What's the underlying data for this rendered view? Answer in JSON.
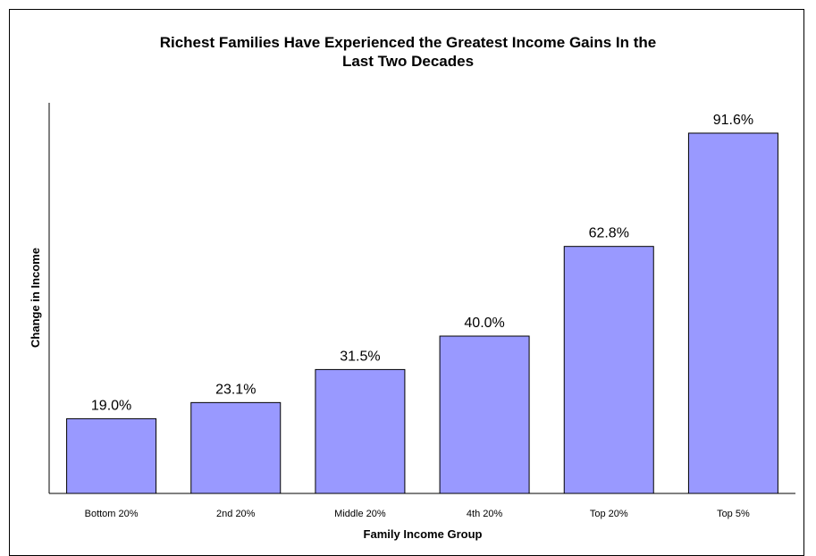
{
  "chart_data": {
    "type": "bar",
    "title_lines": [
      "Richest Families Have Experienced the Greatest Income Gains In the",
      "Last Two Decades"
    ],
    "xlabel": "Family Income Group",
    "ylabel": "Change in Income",
    "categories": [
      "Bottom 20%",
      "2nd 20%",
      "Middle 20%",
      "4th 20%",
      "Top 20%",
      "Top 5%"
    ],
    "values": [
      19.0,
      23.1,
      31.5,
      40.0,
      62.8,
      91.6
    ],
    "data_labels": [
      "19.0%",
      "23.1%",
      "31.5%",
      "40.0%",
      "62.8%",
      "91.6%"
    ],
    "ylim": [
      0,
      100
    ],
    "bar_color": "#9999ff",
    "grid": false,
    "legend": "none"
  }
}
